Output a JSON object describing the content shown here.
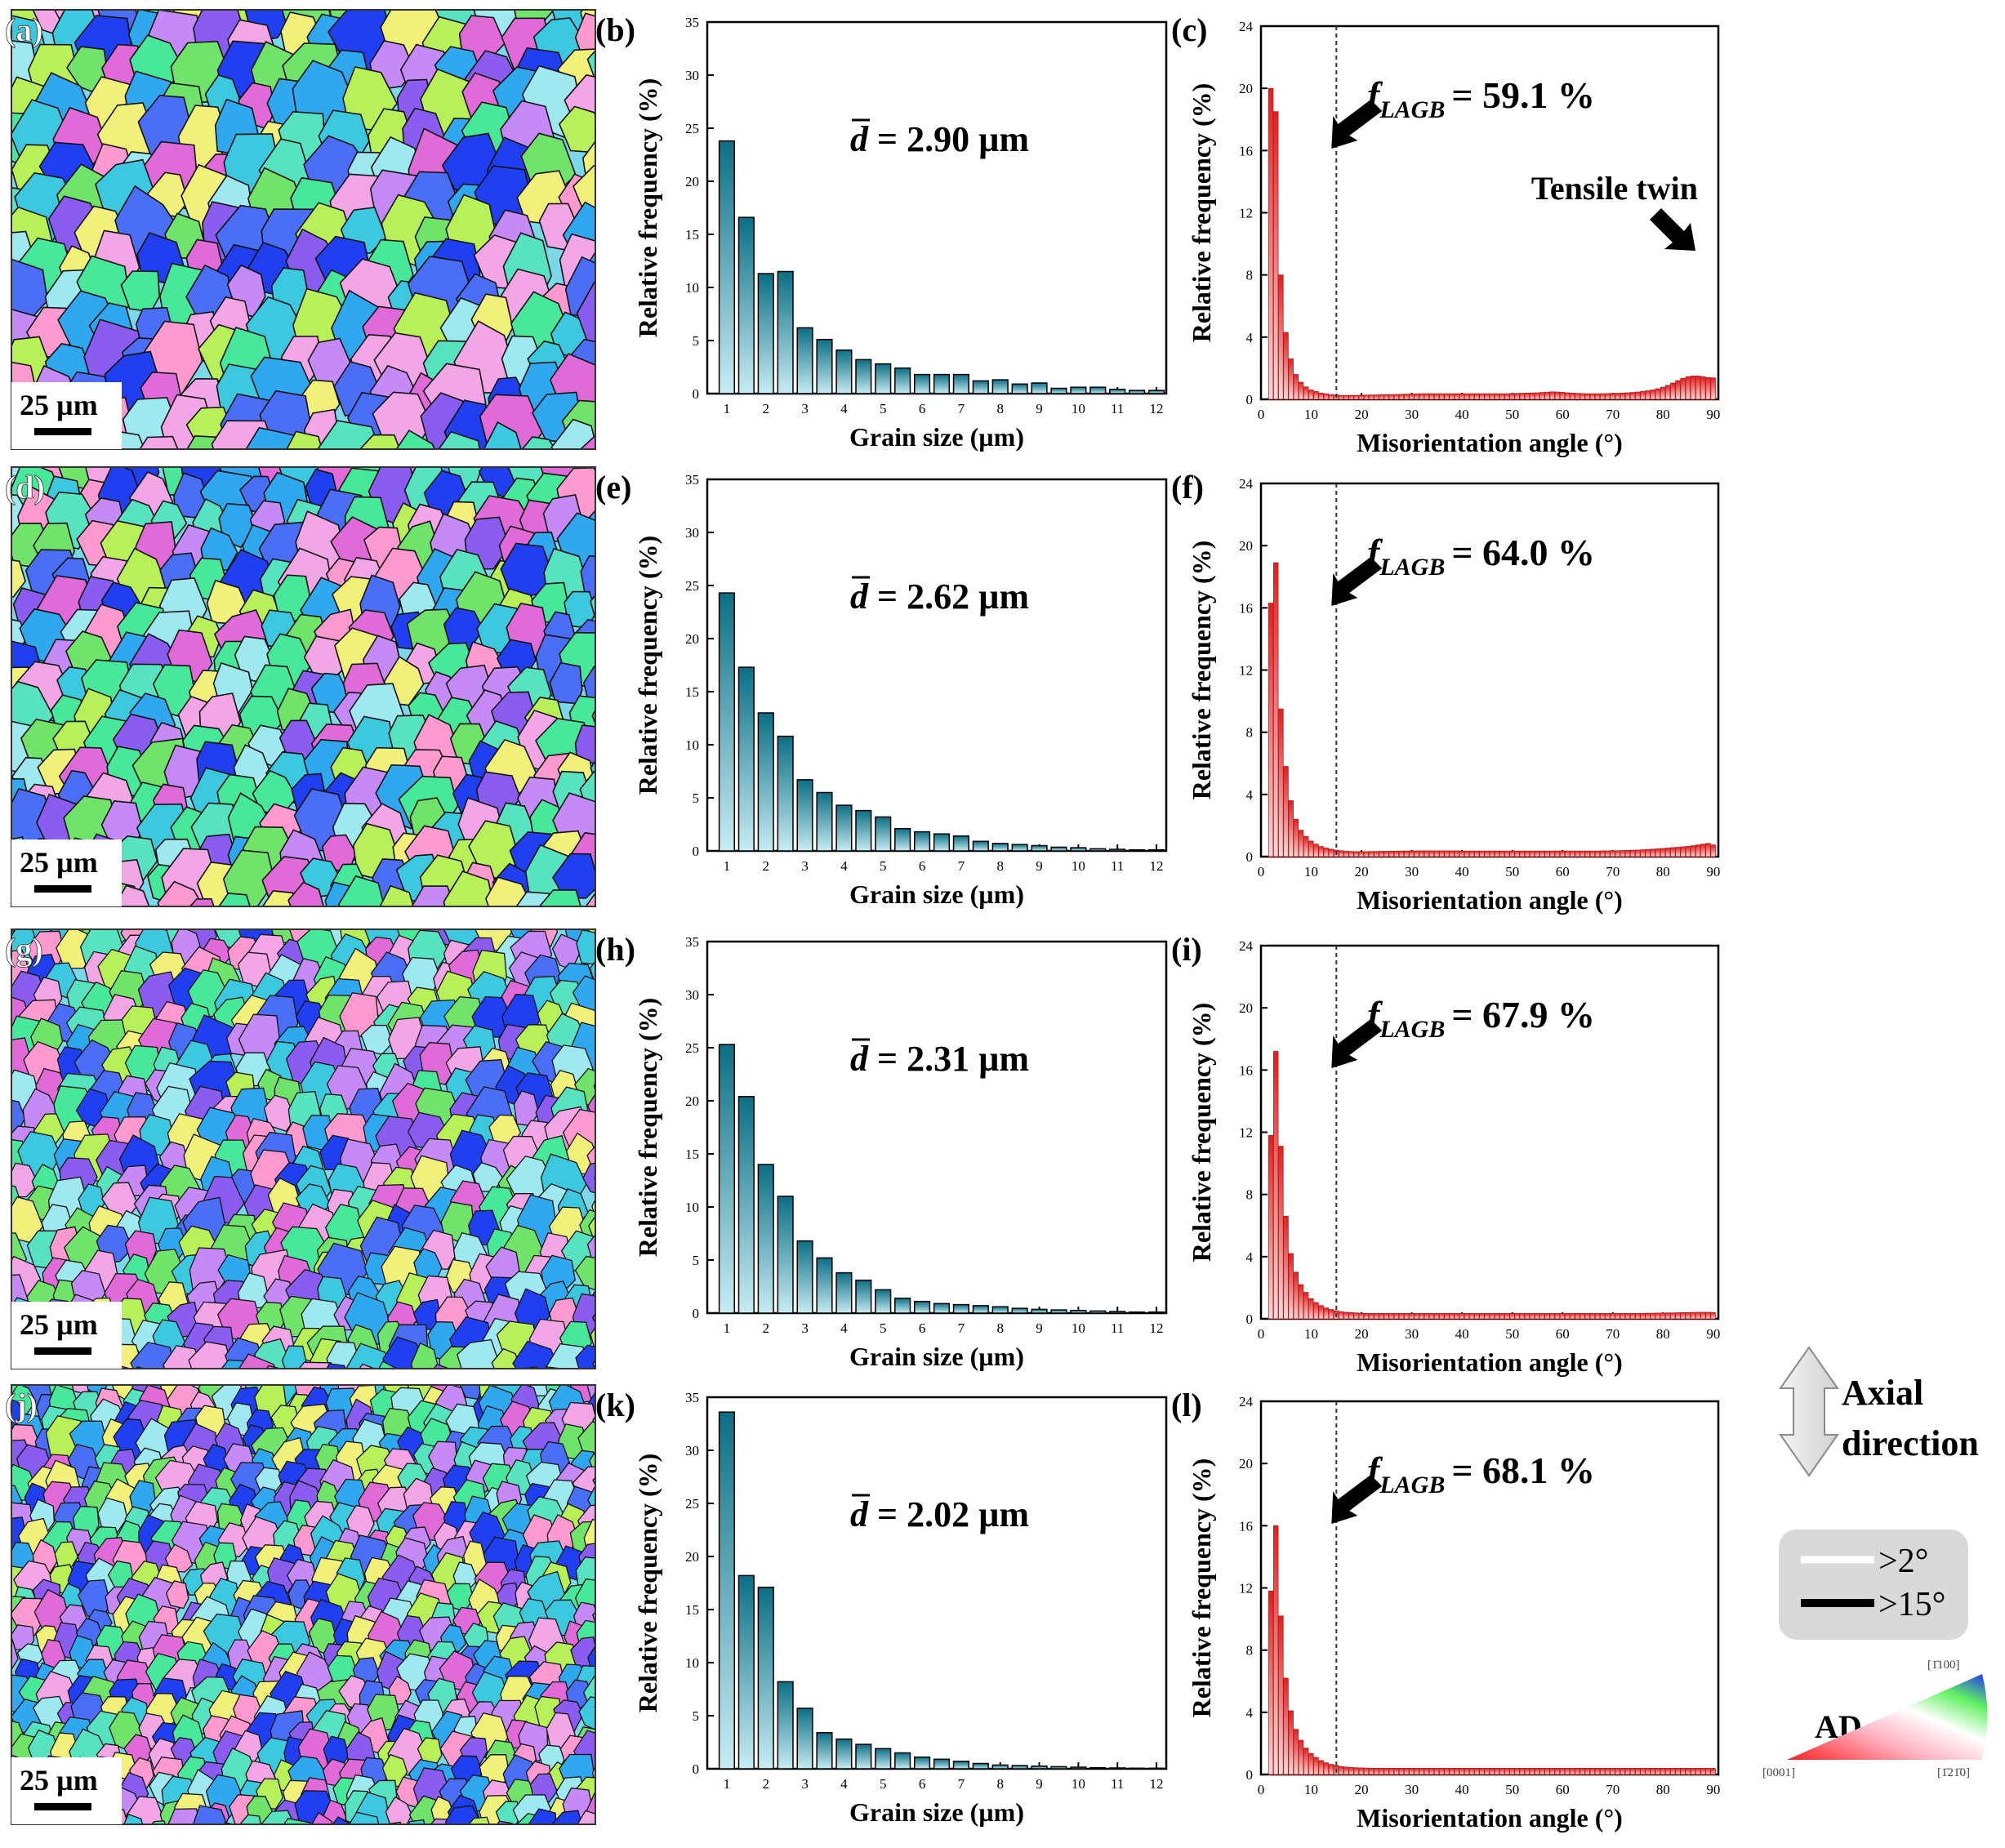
{
  "colors": {
    "grain_bar_top": "#0b6f85",
    "grain_bar_bottom": "#c7ecf3",
    "mis_bar_top": "#e02020",
    "mis_bar_bottom": "#f7d8d8",
    "ebsd_palette": [
      "#3cc9e0",
      "#58e3c0",
      "#8a5cf0",
      "#e06ad8",
      "#f3a6e6",
      "#6fe36a",
      "#2fa8f0",
      "#b8f05a",
      "#ff9ad0",
      "#4a6ef5",
      "#9ee8f0",
      "#c58af5",
      "#48e89a",
      "#f0f07a",
      "#1f3ff0"
    ],
    "boundary_box": "#d9d9d9"
  },
  "rows": [
    {
      "map_label": "(a)",
      "scale_label": "25 µm",
      "grain_label": "(b)",
      "dbar": "2.90 µm",
      "mis_label": "(c)",
      "flagb": "59.1 %",
      "twin_label": "Tensile twin"
    },
    {
      "map_label": "(d)",
      "scale_label": "25 µm",
      "grain_label": "(e)",
      "dbar": "2.62 µm",
      "mis_label": "(f)",
      "flagb": "64.0 %"
    },
    {
      "map_label": "(g)",
      "scale_label": "25 µm",
      "grain_label": "(h)",
      "dbar": "2.31 µm",
      "mis_label": "(i)",
      "flagb": "67.9 %"
    },
    {
      "map_label": "(j)",
      "scale_label": "25 µm",
      "grain_label": "(k)",
      "dbar": "2.02 µm",
      "mis_label": "(l)",
      "flagb": "68.1 %"
    }
  ],
  "chart_data": [
    {
      "type": "bar",
      "name": "(b)",
      "xlabel": "Grain size (µm)",
      "ylabel": "Relative frequency (%)",
      "xlim": [
        0.5,
        12.25
      ],
      "ylim": [
        0,
        35
      ],
      "xticks": [
        1,
        2,
        3,
        4,
        5,
        6,
        7,
        8,
        9,
        10,
        11,
        12
      ],
      "yticks": [
        0,
        5,
        10,
        15,
        20,
        25,
        30,
        35
      ],
      "x": [
        1,
        1.5,
        2,
        2.5,
        3,
        3.5,
        4,
        4.5,
        5,
        5.5,
        6,
        6.5,
        7,
        7.5,
        8,
        8.5,
        9,
        9.5,
        10,
        10.5,
        11,
        11.5,
        12
      ],
      "values": [
        23.8,
        16.6,
        11.3,
        11.5,
        6.2,
        5.1,
        4.1,
        3.2,
        2.8,
        2.4,
        1.8,
        1.8,
        1.8,
        1.2,
        1.3,
        0.9,
        1.0,
        0.5,
        0.6,
        0.6,
        0.4,
        0.3,
        0.3
      ],
      "annotation": "d̄ = 2.90 µm"
    },
    {
      "type": "bar",
      "name": "(c)",
      "xlabel": "Misorientation angle (°)",
      "ylabel": "Relative frequency (%)",
      "xlim": [
        0,
        91
      ],
      "ylim": [
        0,
        24
      ],
      "xticks": [
        0,
        10,
        20,
        30,
        40,
        50,
        60,
        70,
        80,
        90
      ],
      "yticks": [
        0,
        4,
        8,
        12,
        16,
        20,
        24
      ],
      "bin_width": 1,
      "x_start": 2,
      "lagb_threshold": 15,
      "values": [
        20.0,
        18.5,
        8.0,
        4.3,
        2.6,
        1.6,
        1.1,
        0.8,
        0.6,
        0.5,
        0.4,
        0.35,
        0.3,
        0.28,
        0.25,
        0.25,
        0.25,
        0.26,
        0.26,
        0.27,
        0.28,
        0.28,
        0.29,
        0.3,
        0.3,
        0.31,
        0.32,
        0.33,
        0.34,
        0.35,
        0.36,
        0.36,
        0.36,
        0.36,
        0.36,
        0.36,
        0.36,
        0.36,
        0.36,
        0.36,
        0.36,
        0.36,
        0.36,
        0.36,
        0.36,
        0.36,
        0.36,
        0.36,
        0.37,
        0.38,
        0.39,
        0.4,
        0.41,
        0.42,
        0.44,
        0.46,
        0.48,
        0.47,
        0.45,
        0.42,
        0.4,
        0.38,
        0.37,
        0.36,
        0.36,
        0.36,
        0.36,
        0.37,
        0.38,
        0.39,
        0.4,
        0.42,
        0.44,
        0.47,
        0.5,
        0.55,
        0.6,
        0.68,
        0.78,
        0.9,
        1.05,
        1.2,
        1.35,
        1.45,
        1.5,
        1.5,
        1.45,
        1.4,
        1.38
      ],
      "annotation_label": "f",
      "annotation_sub": "LAGB",
      "annotation_value": "= 59.1 %",
      "twin_annotation": "Tensile twin"
    },
    {
      "type": "bar",
      "name": "(e)",
      "xlabel": "Grain size (µm)",
      "ylabel": "Relative frequency (%)",
      "xlim": [
        0.5,
        12.25
      ],
      "ylim": [
        0,
        35
      ],
      "xticks": [
        1,
        2,
        3,
        4,
        5,
        6,
        7,
        8,
        9,
        10,
        11,
        12
      ],
      "yticks": [
        0,
        5,
        10,
        15,
        20,
        25,
        30,
        35
      ],
      "x": [
        1,
        1.5,
        2,
        2.5,
        3,
        3.5,
        4,
        4.5,
        5,
        5.5,
        6,
        6.5,
        7,
        7.5,
        8,
        8.5,
        9,
        9.5,
        10,
        10.5,
        11,
        11.5,
        12
      ],
      "values": [
        24.3,
        17.3,
        13.0,
        10.8,
        6.7,
        5.5,
        4.3,
        3.8,
        3.2,
        2.1,
        1.8,
        1.6,
        1.4,
        0.9,
        0.7,
        0.6,
        0.5,
        0.35,
        0.3,
        0.2,
        0.15,
        0.1,
        0.1
      ],
      "annotation": "d̄ = 2.62 µm"
    },
    {
      "type": "bar",
      "name": "(f)",
      "xlabel": "Misorientation angle (°)",
      "ylabel": "Relative frequency (%)",
      "xlim": [
        0,
        91
      ],
      "ylim": [
        0,
        24
      ],
      "xticks": [
        0,
        10,
        20,
        30,
        40,
        50,
        60,
        70,
        80,
        90
      ],
      "yticks": [
        0,
        4,
        8,
        12,
        16,
        20,
        24
      ],
      "bin_width": 1,
      "x_start": 2,
      "lagb_threshold": 15,
      "values": [
        16.3,
        18.9,
        9.5,
        5.8,
        3.6,
        2.4,
        1.7,
        1.3,
        1.0,
        0.8,
        0.65,
        0.55,
        0.48,
        0.42,
        0.38,
        0.35,
        0.33,
        0.32,
        0.32,
        0.32,
        0.33,
        0.33,
        0.34,
        0.34,
        0.35,
        0.35,
        0.36,
        0.36,
        0.37,
        0.37,
        0.37,
        0.37,
        0.37,
        0.37,
        0.37,
        0.37,
        0.37,
        0.37,
        0.36,
        0.36,
        0.36,
        0.36,
        0.36,
        0.36,
        0.36,
        0.36,
        0.36,
        0.36,
        0.36,
        0.36,
        0.36,
        0.36,
        0.36,
        0.36,
        0.36,
        0.36,
        0.36,
        0.36,
        0.36,
        0.36,
        0.36,
        0.36,
        0.36,
        0.36,
        0.36,
        0.36,
        0.37,
        0.37,
        0.38,
        0.38,
        0.39,
        0.4,
        0.41,
        0.42,
        0.44,
        0.46,
        0.48,
        0.5,
        0.52,
        0.55,
        0.58,
        0.6,
        0.63,
        0.66,
        0.7,
        0.75,
        0.8,
        0.85,
        0.75
      ],
      "annotation_label": "f",
      "annotation_sub": "LAGB",
      "annotation_value": "= 64.0 %"
    },
    {
      "type": "bar",
      "name": "(h)",
      "xlabel": "Grain size (µm)",
      "ylabel": "Relative frequency (%)",
      "xlim": [
        0.5,
        12.25
      ],
      "ylim": [
        0,
        35
      ],
      "xticks": [
        1,
        2,
        3,
        4,
        5,
        6,
        7,
        8,
        9,
        10,
        11,
        12
      ],
      "yticks": [
        0,
        5,
        10,
        15,
        20,
        25,
        30,
        35
      ],
      "x": [
        1,
        1.5,
        2,
        2.5,
        3,
        3.5,
        4,
        4.5,
        5,
        5.5,
        6,
        6.5,
        7,
        7.5,
        8,
        8.5,
        9,
        9.5,
        10,
        10.5,
        11,
        11.5,
        12
      ],
      "values": [
        25.3,
        20.4,
        14.0,
        11.0,
        6.8,
        5.2,
        3.8,
        3.1,
        2.2,
        1.4,
        1.1,
        0.9,
        0.8,
        0.7,
        0.6,
        0.45,
        0.35,
        0.3,
        0.25,
        0.2,
        0.15,
        0.1,
        0.1
      ],
      "annotation": "d̄ = 2.31 µm"
    },
    {
      "type": "bar",
      "name": "(i)",
      "xlabel": "Misorientation angle (°)",
      "ylabel": "Relative frequency (%)",
      "xlim": [
        0,
        91
      ],
      "ylim": [
        0,
        24
      ],
      "xticks": [
        0,
        10,
        20,
        30,
        40,
        50,
        60,
        70,
        80,
        90
      ],
      "yticks": [
        0,
        4,
        8,
        12,
        16,
        20,
        24
      ],
      "bin_width": 1,
      "x_start": 2,
      "lagb_threshold": 15,
      "values": [
        11.8,
        17.2,
        11.1,
        6.6,
        4.2,
        3.0,
        2.2,
        1.7,
        1.3,
        1.05,
        0.85,
        0.7,
        0.6,
        0.52,
        0.46,
        0.42,
        0.4,
        0.38,
        0.36,
        0.35,
        0.35,
        0.35,
        0.35,
        0.35,
        0.35,
        0.35,
        0.35,
        0.35,
        0.35,
        0.35,
        0.35,
        0.35,
        0.35,
        0.35,
        0.35,
        0.35,
        0.35,
        0.35,
        0.35,
        0.35,
        0.35,
        0.35,
        0.35,
        0.35,
        0.35,
        0.35,
        0.35,
        0.35,
        0.35,
        0.35,
        0.35,
        0.35,
        0.35,
        0.35,
        0.35,
        0.35,
        0.35,
        0.35,
        0.35,
        0.35,
        0.35,
        0.35,
        0.35,
        0.35,
        0.35,
        0.35,
        0.35,
        0.35,
        0.35,
        0.35,
        0.35,
        0.35,
        0.35,
        0.35,
        0.35,
        0.36,
        0.36,
        0.37,
        0.37,
        0.38,
        0.38,
        0.39,
        0.4,
        0.4,
        0.41,
        0.42,
        0.42,
        0.42,
        0.4
      ],
      "annotation_label": "f",
      "annotation_sub": "LAGB",
      "annotation_value": "= 67.9 %"
    },
    {
      "type": "bar",
      "name": "(k)",
      "xlabel": "Grain size (µm)",
      "ylabel": "Relative frequency (%)",
      "xlim": [
        0.5,
        12.25
      ],
      "ylim": [
        0,
        35
      ],
      "xticks": [
        1,
        2,
        3,
        4,
        5,
        6,
        7,
        8,
        9,
        10,
        11,
        12
      ],
      "yticks": [
        0,
        5,
        10,
        15,
        20,
        25,
        30,
        35
      ],
      "x": [
        1,
        1.5,
        2,
        2.5,
        3,
        3.5,
        4,
        4.5,
        5,
        5.5,
        6,
        6.5,
        7,
        7.5,
        8,
        8.5,
        9,
        9.5,
        10,
        10.5,
        11,
        11.5,
        12
      ],
      "values": [
        33.6,
        18.2,
        17.1,
        8.2,
        5.7,
        3.4,
        2.8,
        2.3,
        1.9,
        1.5,
        1.1,
        0.9,
        0.7,
        0.5,
        0.35,
        0.3,
        0.25,
        0.2,
        0.15,
        0.1,
        0.08,
        0.05,
        0.05
      ],
      "annotation": "d̄ = 2.02 µm"
    },
    {
      "type": "bar",
      "name": "(l)",
      "xlabel": "Misorientation angle (°)",
      "ylabel": "Relative frequency (%)",
      "xlim": [
        0,
        91
      ],
      "ylim": [
        0,
        24
      ],
      "xticks": [
        0,
        10,
        20,
        30,
        40,
        50,
        60,
        70,
        80,
        90
      ],
      "yticks": [
        0,
        4,
        8,
        12,
        16,
        20,
        24
      ],
      "bin_width": 1,
      "x_start": 2,
      "lagb_threshold": 15,
      "values": [
        11.8,
        16.0,
        10.2,
        6.2,
        4.1,
        2.9,
        2.2,
        1.7,
        1.35,
        1.1,
        0.9,
        0.75,
        0.65,
        0.58,
        0.52,
        0.48,
        0.45,
        0.43,
        0.42,
        0.41,
        0.4,
        0.4,
        0.4,
        0.4,
        0.4,
        0.4,
        0.4,
        0.4,
        0.4,
        0.4,
        0.4,
        0.4,
        0.4,
        0.4,
        0.4,
        0.4,
        0.4,
        0.4,
        0.4,
        0.4,
        0.4,
        0.4,
        0.4,
        0.4,
        0.4,
        0.4,
        0.4,
        0.4,
        0.4,
        0.4,
        0.4,
        0.4,
        0.4,
        0.4,
        0.4,
        0.4,
        0.4,
        0.4,
        0.4,
        0.4,
        0.4,
        0.4,
        0.4,
        0.4,
        0.4,
        0.4,
        0.4,
        0.4,
        0.4,
        0.4,
        0.4,
        0.4,
        0.4,
        0.4,
        0.4,
        0.4,
        0.4,
        0.4,
        0.4,
        0.4,
        0.4,
        0.4,
        0.4,
        0.4,
        0.4,
        0.4,
        0.4,
        0.4,
        0.38
      ],
      "annotation_label": "f",
      "annotation_sub": "LAGB",
      "annotation_value": "= 68.1 %"
    }
  ],
  "legend": {
    "axial_line1": "Axial",
    "axial_line2": "direction",
    "boundary_low": ">2°",
    "boundary_high": ">15°",
    "ipf_title": "AD",
    "ipf_top": "[1̄100]",
    "ipf_left": "[0001]",
    "ipf_right": "[1̄21̄0]"
  }
}
